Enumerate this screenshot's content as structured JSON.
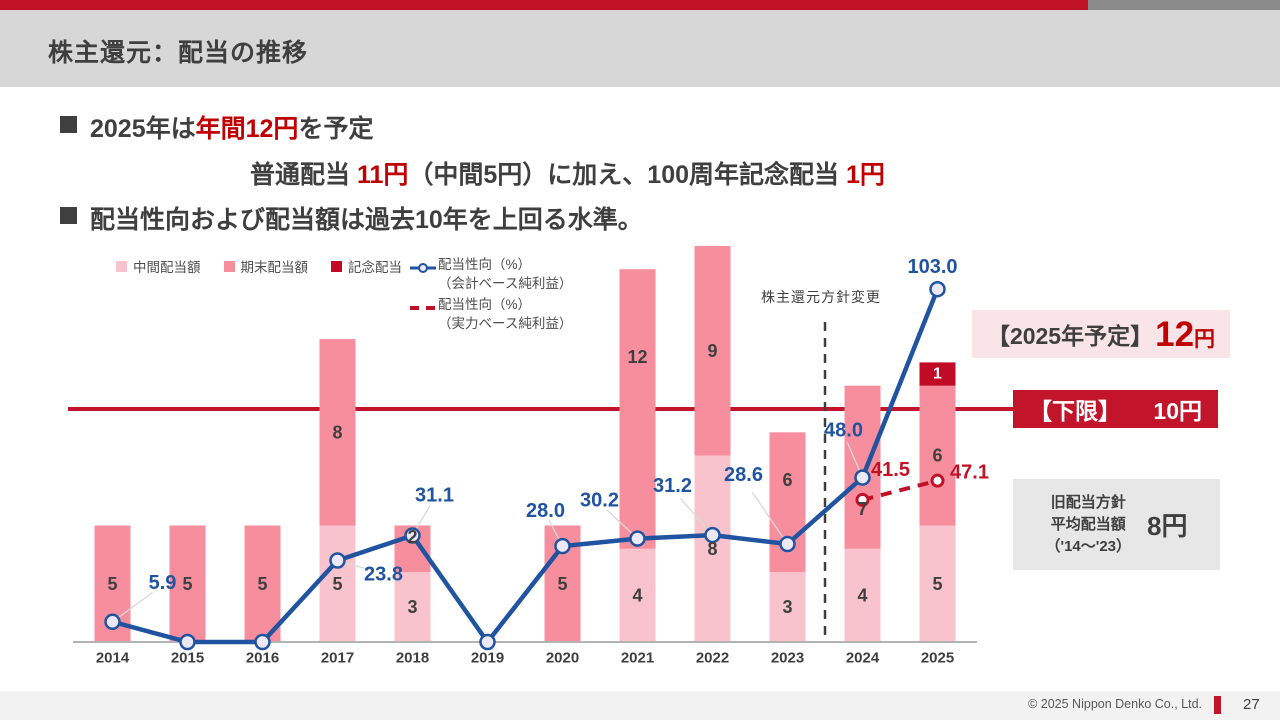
{
  "header": {
    "title": "株主還元：配当の推移"
  },
  "bullets": {
    "line1": {
      "pre": "2025年は",
      "red": "年間12円",
      "post": "を予定"
    },
    "line2": {
      "pre": "普通配当 ",
      "red1": "11円",
      "mid": "（中間5円）に加え、100周年記念配当 ",
      "red2": "1円"
    },
    "line3": "配当性向および配当額は過去10年を上回る水準。"
  },
  "legend": {
    "items": [
      {
        "label": "中間配当額",
        "color": "#f8c3cc"
      },
      {
        "label": "期末配当額",
        "color": "#f78e9d"
      },
      {
        "label": "記念配当",
        "color": "#c00a26"
      },
      {
        "label1": "配当性向（%）",
        "label2": "（会計ベース純利益）",
        "color": "#2053a0"
      },
      {
        "label1": "配当性向（%）",
        "label2": "（実力ベース純利益）",
        "color": "#c01226"
      }
    ]
  },
  "chart_data": {
    "type": "bar+line",
    "title": "",
    "categories": [
      "2014",
      "2015",
      "2016",
      "2017",
      "2018",
      "2019",
      "2020",
      "2021",
      "2022",
      "2023",
      "2024",
      "2025"
    ],
    "bar_unit": "円",
    "line_unit": "%",
    "bar_series": [
      {
        "name": "中間配当額",
        "color": "#f8c3cc",
        "values": [
          0,
          0,
          0,
          5,
          3,
          0,
          0,
          4,
          8,
          3,
          4,
          5
        ]
      },
      {
        "name": "期末配当額",
        "color": "#f78e9d",
        "values": [
          5,
          5,
          5,
          8,
          2,
          0,
          5,
          12,
          9,
          6,
          7,
          6
        ]
      },
      {
        "name": "記念配当",
        "color": "#c00a26",
        "values": [
          0,
          0,
          0,
          0,
          0,
          0,
          0,
          0,
          0,
          0,
          0,
          1
        ]
      }
    ],
    "line_series": [
      {
        "name": "配当性向（%）（会計ベース純利益）",
        "style": "solid",
        "color": "#2053a0",
        "values": [
          5.9,
          0,
          0,
          23.8,
          31.1,
          0,
          28.0,
          30.2,
          31.2,
          28.6,
          48.0,
          103.0
        ],
        "labels": [
          "5.9",
          null,
          null,
          "23.8",
          "31.1",
          null,
          "28.0",
          "30.2",
          "31.2",
          "28.6",
          "48.0",
          "103.0"
        ]
      },
      {
        "name": "配当性向（%）（実力ベース純利益）",
        "style": "dashed",
        "color": "#c01226",
        "values": [
          null,
          null,
          null,
          null,
          null,
          null,
          null,
          null,
          null,
          null,
          41.5,
          47.1
        ],
        "labels": [
          null,
          null,
          null,
          null,
          null,
          null,
          null,
          null,
          null,
          null,
          "41.5",
          "47.1"
        ]
      }
    ],
    "reference_line": {
      "value": 10,
      "unit": "円",
      "color": "#c2152c",
      "label": "【下限】　10円"
    },
    "policy_change_line": {
      "between": [
        "2023",
        "2024"
      ],
      "label": "株主還元方針変更"
    },
    "axis": {
      "y_visible": false,
      "x_labels_bold": true
    },
    "legend_position": "top"
  },
  "annotations": {
    "policy_change": "株主還元方針変更",
    "forecast_box": {
      "label": "【2025年予定】",
      "value": "12",
      "unit": "円"
    },
    "floor_box": {
      "label": "【下限】",
      "value": "10円"
    },
    "old_policy_box": {
      "line1": "旧配当方針",
      "line2": "平均配当額",
      "line3": "（'14～'23）",
      "value": "8円"
    }
  },
  "footer": {
    "copyright": "© 2025 Nippon Denko Co., Ltd.",
    "page": "27"
  }
}
